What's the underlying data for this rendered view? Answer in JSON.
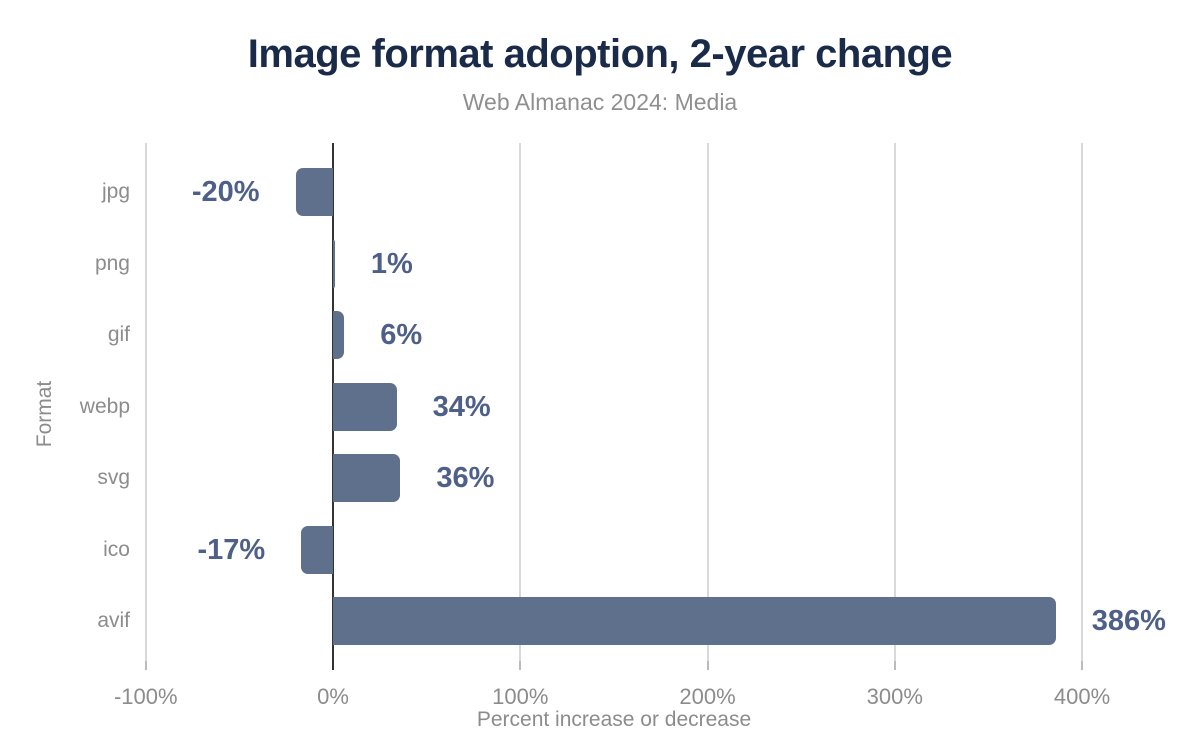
{
  "chart_data": {
    "type": "bar",
    "orientation": "horizontal",
    "title": "Image format adoption, 2-year change",
    "subtitle": "Web Almanac 2024: Media",
    "xlabel": "Percent increase or decrease",
    "ylabel": "Format",
    "categories": [
      "jpg",
      "png",
      "gif",
      "webp",
      "svg",
      "ico",
      "avif"
    ],
    "values": [
      -20,
      1,
      6,
      34,
      36,
      -17,
      386
    ],
    "value_labels": [
      "-20%",
      "1%",
      "6%",
      "34%",
      "36%",
      "-17%",
      "386%"
    ],
    "xlim": [
      -100,
      450
    ],
    "xticks": [
      -100,
      0,
      100,
      200,
      300,
      400
    ],
    "xtick_labels": [
      "-100%",
      "0%",
      "100%",
      "200%",
      "300%",
      "400%"
    ],
    "grid": true,
    "legend": "none",
    "colors": {
      "bar": "#5f708c",
      "value_label": "#4e6088",
      "title": "#192b49",
      "subtitle": "#8f8f8f",
      "axis_text": "#8c8c8c",
      "gridline": "#d9d9d9",
      "zero_line": "#333333",
      "background": "#ffffff"
    }
  }
}
